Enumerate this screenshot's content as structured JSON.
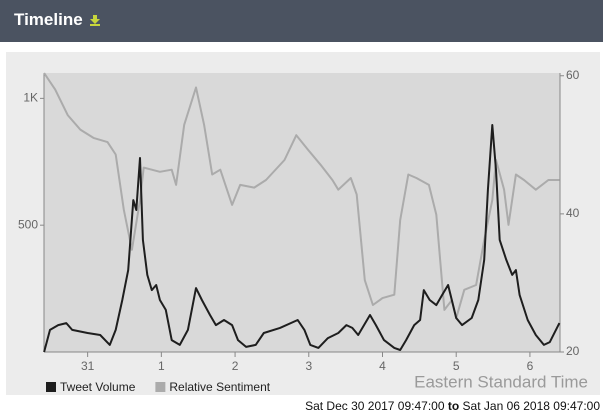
{
  "header": {
    "title": "Timeline"
  },
  "chart_data": {
    "type": "line",
    "timezone": "Eastern Standard Time",
    "xlim": [
      30.408,
      37.408
    ],
    "xticks": [
      31,
      {
        "value": 32,
        "label": "1"
      },
      {
        "value": 33,
        "label": "2"
      },
      {
        "value": 34,
        "label": "3"
      },
      {
        "value": 35,
        "label": "4"
      },
      {
        "value": 36,
        "label": "5"
      },
      {
        "value": 37,
        "label": "6"
      }
    ],
    "ylim": [
      0,
      1100
    ],
    "yticks": [
      {
        "value": 500,
        "label": "500"
      },
      {
        "value": 1000,
        "label": "1K"
      }
    ],
    "y2lim": [
      20,
      60.4
    ],
    "y2ticks": [
      20,
      40,
      60
    ],
    "series": [
      {
        "name": "Tweet Volume",
        "color": "#1e1e1e",
        "axis": "y",
        "x": [
          30.41,
          30.49,
          30.6,
          30.71,
          30.79,
          31.0,
          31.17,
          31.3,
          31.38,
          31.47,
          31.55,
          31.62,
          31.66,
          31.71,
          31.75,
          31.81,
          31.87,
          31.93,
          31.98,
          32.06,
          32.14,
          32.25,
          32.36,
          32.47,
          32.55,
          32.66,
          32.74,
          32.85,
          32.96,
          33.04,
          33.15,
          33.28,
          33.39,
          33.61,
          33.85,
          33.94,
          34.02,
          34.13,
          34.26,
          34.4,
          34.51,
          34.59,
          34.67,
          34.83,
          34.91,
          35.02,
          35.16,
          35.24,
          35.32,
          35.43,
          35.51,
          35.56,
          35.64,
          35.73,
          35.81,
          35.89,
          35.94,
          36.0,
          36.08,
          36.21,
          36.3,
          36.38,
          36.43,
          36.49,
          36.54,
          36.59,
          36.68,
          36.76,
          36.81,
          36.86,
          36.97,
          37.08,
          37.19,
          37.27,
          37.4
        ],
        "values": [
          0,
          87,
          106,
          114,
          87,
          75,
          67,
          28,
          87,
          205,
          323,
          599,
          560,
          765,
          442,
          304,
          244,
          264,
          205,
          166,
          47,
          28,
          87,
          252,
          205,
          146,
          106,
          126,
          106,
          47,
          20,
          28,
          75,
          95,
          126,
          87,
          28,
          16,
          55,
          75,
          106,
          95,
          67,
          146,
          106,
          47,
          16,
          8,
          47,
          106,
          126,
          244,
          205,
          185,
          225,
          264,
          205,
          134,
          106,
          134,
          205,
          363,
          639,
          895,
          718,
          442,
          363,
          304,
          323,
          225,
          126,
          67,
          28,
          39,
          114
        ]
      },
      {
        "name": "Relative Sentiment",
        "color": "#ababab",
        "axis": "y2",
        "x": [
          30.41,
          30.56,
          30.73,
          30.9,
          31.08,
          31.27,
          31.38,
          31.49,
          31.6,
          31.71,
          31.76,
          31.87,
          31.98,
          32.14,
          32.2,
          32.31,
          32.47,
          32.58,
          32.69,
          32.8,
          32.96,
          33.07,
          33.26,
          33.42,
          33.67,
          33.83,
          33.99,
          34.16,
          34.32,
          34.4,
          34.57,
          34.65,
          34.76,
          34.87,
          35.0,
          35.16,
          35.24,
          35.35,
          35.46,
          35.63,
          35.73,
          35.84,
          35.94,
          36.0,
          36.11,
          36.27,
          36.38,
          36.49,
          36.54,
          36.65,
          36.71,
          36.81,
          36.92,
          37.08,
          37.25,
          37.4
        ],
        "values": [
          60.4,
          58.0,
          54.3,
          52.2,
          51.0,
          50.4,
          48.6,
          40.6,
          34.8,
          42.0,
          46.7,
          46.4,
          46.1,
          46.4,
          44.2,
          52.9,
          58.3,
          52.9,
          45.7,
          46.4,
          41.3,
          44.2,
          43.8,
          44.9,
          47.8,
          51.4,
          49.3,
          47.1,
          44.9,
          43.5,
          45.2,
          42.8,
          30.4,
          26.8,
          27.8,
          28.3,
          39.1,
          45.7,
          45.2,
          44.2,
          39.9,
          26.1,
          27.5,
          24.9,
          29.0,
          29.7,
          36.2,
          42.0,
          47.8,
          43.5,
          38.4,
          45.7,
          44.9,
          43.5,
          44.9,
          44.9
        ]
      }
    ]
  },
  "footer": {
    "start": "Sat Dec 30 2017 09:47:00",
    "separator": "to",
    "end": "Sat Jan 06 2018 09:47:00"
  }
}
